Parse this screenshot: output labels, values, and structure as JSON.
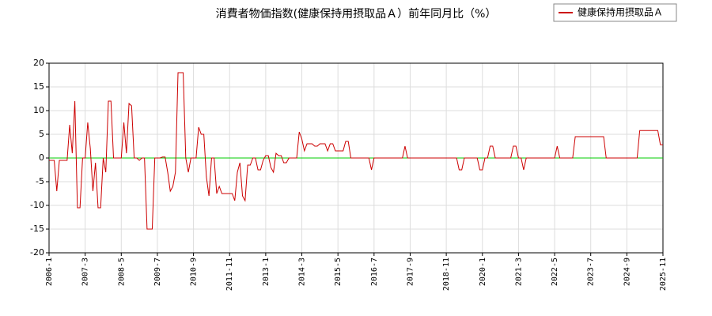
{
  "chart_data": {
    "type": "line",
    "title": "消費者物価指数(健康保持用摂取品Ａ）前年同月比（%）",
    "categories": [
      "2006-1",
      null,
      null,
      null,
      null,
      null,
      null,
      null,
      null,
      null,
      null,
      null,
      null,
      null,
      "2007-3",
      null,
      null,
      null,
      null,
      null,
      null,
      null,
      null,
      null,
      null,
      null,
      null,
      null,
      "2008-5",
      null,
      null,
      null,
      null,
      null,
      null,
      null,
      null,
      null,
      null,
      null,
      null,
      null,
      "2009-7",
      null,
      null,
      null,
      null,
      null,
      null,
      null,
      null,
      null,
      null,
      null,
      null,
      null,
      "2010-9",
      null,
      null,
      null,
      null,
      null,
      null,
      null,
      null,
      null,
      null,
      null,
      null,
      null,
      "2011-11",
      null,
      null,
      null,
      null,
      null,
      null,
      null,
      null,
      null,
      null,
      null,
      null,
      null,
      "2013-1",
      null,
      null,
      null,
      null,
      null,
      null,
      null,
      null,
      null,
      null,
      null,
      null,
      null,
      "2014-3",
      null,
      null,
      null,
      null,
      null,
      null,
      null,
      null,
      null,
      null,
      null,
      null,
      null,
      "2015-5",
      null,
      null,
      null,
      null,
      null,
      null,
      null,
      null,
      null,
      null,
      null,
      null,
      null,
      "2016-7",
      null,
      null,
      null,
      null,
      null,
      null,
      null,
      null,
      null,
      null,
      null,
      null,
      null,
      "2017-9",
      null,
      null,
      null,
      null,
      null,
      null,
      null,
      null,
      null,
      null,
      null,
      null,
      null,
      "2018-11",
      null,
      null,
      null,
      null,
      null,
      null,
      null,
      null,
      null,
      null,
      null,
      null,
      null,
      "2020-1",
      null,
      null,
      null,
      null,
      null,
      null,
      null,
      null,
      null,
      null,
      null,
      null,
      null,
      "2021-3",
      null,
      null,
      null,
      null,
      null,
      null,
      null,
      null,
      null,
      null,
      null,
      null,
      null,
      "2022-5",
      null,
      null,
      null,
      null,
      null,
      null,
      null,
      null,
      null,
      null,
      null,
      null,
      null,
      "2023-7",
      null,
      null,
      null,
      null,
      null,
      null,
      null,
      null,
      null,
      null,
      null,
      null,
      null,
      "2024-9",
      null,
      null,
      null,
      null,
      null,
      null,
      null,
      null,
      null,
      null,
      null,
      null,
      null,
      "2025-11"
    ],
    "series": [
      {
        "name": "健康保持用摂取品Ａ",
        "color": "#cc0000",
        "values": [
          -0.5,
          -0.5,
          -0.5,
          -7,
          -0.5,
          -0.5,
          -0.5,
          -0.5,
          7,
          1,
          12,
          -10.5,
          -10.5,
          0,
          0,
          7.5,
          2,
          -7,
          -1,
          -10.5,
          -10.5,
          0,
          -3,
          12,
          12,
          0,
          0,
          0,
          0,
          7.5,
          1,
          11.5,
          11,
          0,
          0,
          -0.5,
          0,
          0,
          -15,
          -15,
          -15,
          0,
          0,
          0,
          0.2,
          0.2,
          -3,
          -7,
          -6,
          -3,
          18,
          18,
          18,
          0,
          -3,
          0,
          0,
          0,
          6.5,
          5,
          5,
          -4,
          -8,
          0,
          0,
          -7.5,
          -6,
          -7.5,
          -7.5,
          -7.5,
          -7.5,
          -7.5,
          -9,
          -3,
          -1,
          -8,
          -9,
          -1.5,
          -1.5,
          0,
          0,
          -2.5,
          -2.5,
          -0.5,
          0.5,
          0.5,
          -2,
          -3,
          1,
          0.5,
          0.5,
          -1,
          -1,
          0,
          0,
          0,
          0,
          5.5,
          4,
          1.5,
          3,
          3,
          3,
          2.5,
          2.5,
          3,
          3,
          3,
          1.5,
          3,
          3,
          1.5,
          1.5,
          1.5,
          1.5,
          3.5,
          3.5,
          0,
          0,
          0,
          0,
          0,
          0,
          0,
          0,
          -2.5,
          0,
          0,
          0,
          0,
          0,
          0,
          0,
          0,
          0,
          0,
          0,
          0,
          2.5,
          0,
          0,
          0,
          0,
          0,
          0,
          0,
          0,
          0,
          0,
          0,
          0,
          0,
          0,
          0,
          0,
          0,
          0,
          0,
          0,
          -2.5,
          -2.5,
          0,
          0,
          0,
          0,
          0,
          0,
          -2.5,
          -2.5,
          0,
          0,
          2.5,
          2.5,
          0,
          0,
          0,
          0,
          0,
          0,
          0,
          2.5,
          2.5,
          0,
          0,
          -2.5,
          0,
          0,
          0,
          0,
          0,
          0,
          0,
          0,
          0,
          0,
          0,
          0,
          2.5,
          0,
          0,
          0,
          0,
          0,
          0,
          4.5,
          4.5,
          4.5,
          4.5,
          4.5,
          4.5,
          4.5,
          4.5,
          4.5,
          4.5,
          4.5,
          4.5,
          0,
          0,
          0,
          0,
          0,
          0,
          0,
          0,
          0,
          0,
          0,
          0,
          0,
          5.8,
          5.8,
          5.8,
          5.8,
          5.8,
          5.8,
          5.8,
          5.8,
          2.8,
          2.8
        ]
      }
    ],
    "ylim": [
      -20,
      20
    ],
    "yticks": [
      -20,
      -15,
      -10,
      -5,
      0,
      5,
      10,
      15,
      20
    ],
    "grid": true,
    "zero_line_color": "#00cc00",
    "legend": "upper right"
  }
}
